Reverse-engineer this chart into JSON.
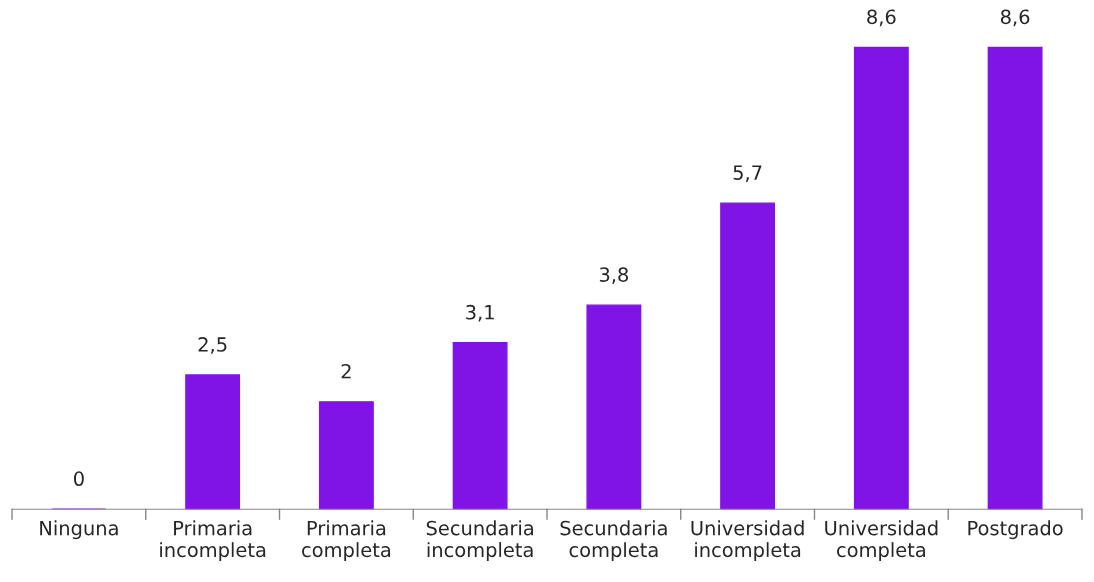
{
  "chart_data": {
    "type": "bar",
    "categories": [
      "Ninguna",
      "Primaria\nincompleta",
      "Primaria\ncompleta",
      "Secundaria\nincompleta",
      "Secundaria\ncompleta",
      "Universidad\nincompleta",
      "Universidad\ncompleta",
      "Postgrado"
    ],
    "values": [
      0,
      2.5,
      2,
      3.1,
      3.8,
      5.7,
      8.6,
      8.6
    ],
    "value_labels": [
      "0",
      "2,5",
      "2",
      "3,1",
      "3,8",
      "5,7",
      "8,6",
      "8,6"
    ],
    "color": "#8013e6",
    "grid": false,
    "legend": false,
    "tick_labels": "x"
  }
}
